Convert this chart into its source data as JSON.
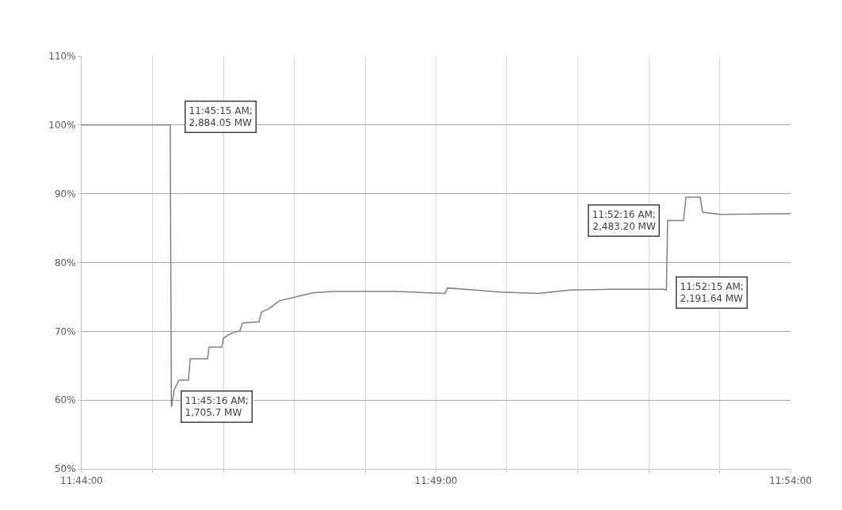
{
  "chart_data": {
    "type": "line",
    "x": [
      11.73333,
      11.75417,
      11.75444,
      11.75512,
      11.75624,
      11.75847,
      11.75885,
      11.76295,
      11.76332,
      11.7663,
      11.76667,
      11.76815,
      11.77058,
      11.77113,
      11.77505,
      11.7756,
      11.77747,
      11.7797,
      11.78305,
      11.78772,
      11.79237,
      11.80727,
      11.81472,
      11.8188,
      11.81937,
      11.82588,
      11.83147,
      11.84078,
      11.84823,
      11.85755,
      11.8702,
      11.87083,
      11.87111,
      11.87487,
      11.87542,
      11.87877,
      11.87933,
      11.88362,
      11.9
    ],
    "series": [
      {
        "color": "#808080",
        "values": [
          100,
          100,
          59,
          61.5,
          62.9,
          62.9,
          66,
          66,
          67.7,
          67.7,
          69,
          69.6,
          70.1,
          71.2,
          71.4,
          72.8,
          73.3,
          74.4,
          74.9,
          75.6,
          75.8,
          75.8,
          75.6,
          75.5,
          76.3,
          76,
          75.7,
          75.5,
          76,
          76.1,
          76.1,
          76,
          86.1,
          86.1,
          89.5,
          89.5,
          87.3,
          87,
          87.1
        ]
      }
    ],
    "xlim": [
      11.73333,
      11.9
    ],
    "xticks": [
      {
        "value": 11.73333,
        "label": "11:44:00"
      },
      {
        "value": 11.75,
        "label": null
      },
      {
        "value": 11.76667,
        "label": null
      },
      {
        "value": 11.78333,
        "label": null
      },
      {
        "value": 11.8,
        "label": null
      },
      {
        "value": 11.81667,
        "label": "11:49:00"
      },
      {
        "value": 11.83333,
        "label": null
      },
      {
        "value": 11.85,
        "label": null
      },
      {
        "value": 11.86667,
        "label": null
      },
      {
        "value": 11.88333,
        "label": null
      },
      {
        "value": 11.9,
        "label": "11:54:00"
      }
    ],
    "ylim": [
      50,
      110
    ],
    "yticks": [
      {
        "value": 50,
        "label": "50%"
      },
      {
        "value": 60,
        "label": "60%"
      },
      {
        "value": 70,
        "label": "70%"
      },
      {
        "value": 80,
        "label": "80%"
      },
      {
        "value": 90,
        "label": "90%"
      },
      {
        "value": 100,
        "label": "100%"
      },
      {
        "value": 110,
        "label": "110%"
      }
    ],
    "grid": true,
    "marker": "none",
    "line_style": "solid",
    "annotations": [
      {
        "text": "11:45:15 AM;\n2,884.05 MW",
        "x": 11.75417,
        "y": 100
      },
      {
        "text": "11:45:16 AM;\n1,705.7 MW",
        "x": 11.75444,
        "y": 59
      },
      {
        "text": "11:52:16 AM;\n2,483.20 MW",
        "x": 11.87111,
        "y": 86.1
      },
      {
        "text": "11:52:15 AM;\n2,191.64 MW",
        "x": 11.87083,
        "y": 76
      }
    ]
  }
}
